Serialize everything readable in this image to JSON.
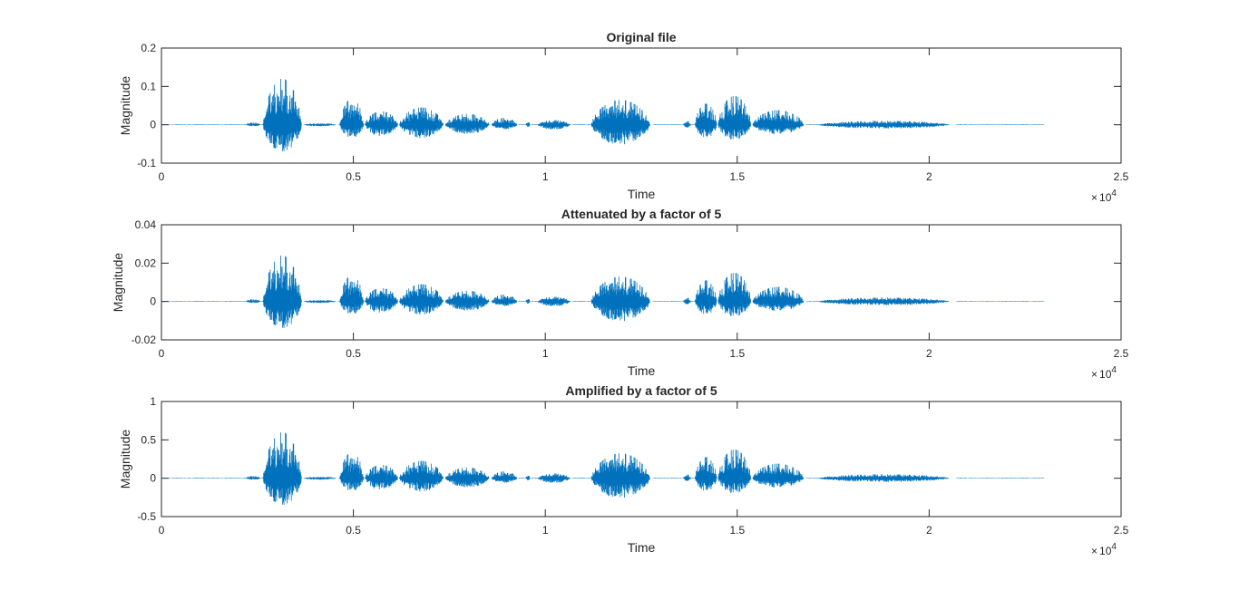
{
  "chart_data": [
    {
      "type": "line",
      "title": "Original file",
      "xlabel": "Time",
      "ylabel": "Magnitude",
      "xlim": [
        0,
        25000
      ],
      "ylim": [
        -0.1,
        0.2
      ],
      "x_ticks": [
        0,
        5000,
        10000,
        15000,
        20000,
        25000
      ],
      "x_tick_labels": [
        "0",
        "0.5",
        "1",
        "1.5",
        "2",
        "2.5"
      ],
      "x_exponent": "10",
      "x_exponent_power": "4",
      "y_ticks": [
        -0.1,
        0,
        0.1,
        0.2
      ],
      "y_tick_labels": [
        "-0.1",
        "0",
        "0.1",
        "0.2"
      ],
      "scale": 1,
      "series_color": "#0072BD"
    },
    {
      "type": "line",
      "title": "Attenuated by a factor of 5",
      "xlabel": "Time",
      "ylabel": "Magnitude",
      "xlim": [
        0,
        25000
      ],
      "ylim": [
        -0.02,
        0.04
      ],
      "x_ticks": [
        0,
        5000,
        10000,
        15000,
        20000,
        25000
      ],
      "x_tick_labels": [
        "0",
        "0.5",
        "1",
        "1.5",
        "2",
        "2.5"
      ],
      "x_exponent": "10",
      "x_exponent_power": "4",
      "y_ticks": [
        -0.02,
        0,
        0.02,
        0.04
      ],
      "y_tick_labels": [
        "-0.02",
        "0",
        "0.02",
        "0.04"
      ],
      "scale": 0.2,
      "series_color": "#0072BD"
    },
    {
      "type": "line",
      "title": "Amplified by a factor of 5",
      "xlabel": "Time",
      "ylabel": "Magnitude",
      "xlim": [
        0,
        25000
      ],
      "ylim": [
        -0.5,
        1
      ],
      "x_ticks": [
        0,
        5000,
        10000,
        15000,
        20000,
        25000
      ],
      "x_tick_labels": [
        "0",
        "0.5",
        "1",
        "1.5",
        "2",
        "2.5"
      ],
      "x_exponent": "10",
      "x_exponent_power": "4",
      "y_ticks": [
        -0.5,
        0,
        0.5,
        1
      ],
      "y_tick_labels": [
        "-0.5",
        "0",
        "0.5",
        "1"
      ],
      "scale": 5,
      "series_color": "#0072BD"
    }
  ],
  "signal": {
    "x_end": 23000,
    "segments": [
      {
        "x": [
          2200,
          2600
        ],
        "pos": 0.006,
        "neg": -0.004
      },
      {
        "x": [
          2650,
          3700
        ],
        "pos": 0.12,
        "neg": -0.075
      },
      {
        "x": [
          3700,
          4600
        ],
        "pos": 0.004,
        "neg": -0.004
      },
      {
        "x": [
          4650,
          5300
        ],
        "pos": 0.068,
        "neg": -0.035
      },
      {
        "x": [
          5300,
          6200
        ],
        "pos": 0.035,
        "neg": -0.03
      },
      {
        "x": [
          6200,
          7400
        ],
        "pos": 0.045,
        "neg": -0.035
      },
      {
        "x": [
          7400,
          8600
        ],
        "pos": 0.028,
        "neg": -0.025
      },
      {
        "x": [
          8600,
          9300
        ],
        "pos": 0.018,
        "neg": -0.012
      },
      {
        "x": [
          9500,
          9600
        ],
        "pos": 0.012,
        "neg": -0.006
      },
      {
        "x": [
          9800,
          10700
        ],
        "pos": 0.012,
        "neg": -0.012
      },
      {
        "x": [
          11200,
          12800
        ],
        "pos": 0.065,
        "neg": -0.053
      },
      {
        "x": [
          13600,
          13800
        ],
        "pos": 0.01,
        "neg": -0.008
      },
      {
        "x": [
          13900,
          14500
        ],
        "pos": 0.055,
        "neg": -0.035
      },
      {
        "x": [
          14500,
          15400
        ],
        "pos": 0.075,
        "neg": -0.04
      },
      {
        "x": [
          15400,
          16800
        ],
        "pos": 0.038,
        "neg": -0.025
      },
      {
        "x": [
          17100,
          20700
        ],
        "pos": 0.01,
        "neg": -0.01
      }
    ]
  }
}
